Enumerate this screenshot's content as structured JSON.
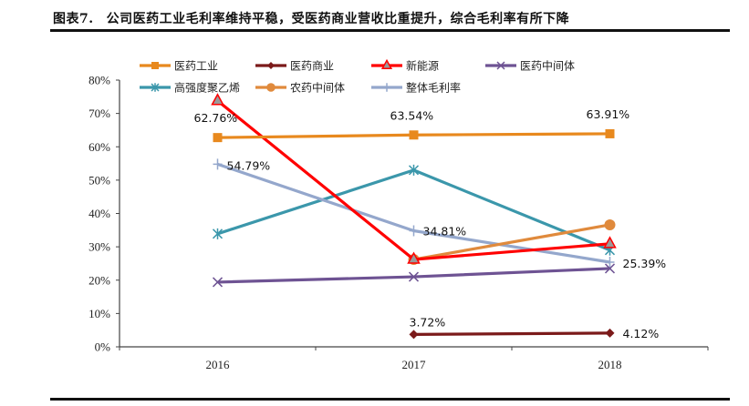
{
  "header": {
    "figure_number": "图表7.",
    "title": "公司医药工业毛利率维持平稳，受医药商业营收比重提升，综合毛利率有所下降"
  },
  "chart_data": {
    "type": "line",
    "title": "公司医药工业毛利率维持平稳，受医药商业营收比重提升，综合毛利率有所下降",
    "xlabel": "",
    "ylabel": "",
    "categories": [
      "2016",
      "2017",
      "2018"
    ],
    "ylim": [
      0,
      80
    ],
    "y_ticks": [
      "0%",
      "10%",
      "20%",
      "30%",
      "40%",
      "50%",
      "60%",
      "70%",
      "80%"
    ],
    "y_tick_values": [
      0,
      10,
      20,
      30,
      40,
      50,
      60,
      70,
      80
    ],
    "grid": false,
    "legend_position": "top",
    "series": [
      {
        "name": "医药工业",
        "color": "#E8891E",
        "marker": "square",
        "values": [
          62.76,
          63.54,
          63.91
        ],
        "labels": [
          "62.76%",
          "63.54%",
          "63.91%"
        ]
      },
      {
        "name": "医药商业",
        "color": "#7B1A1A",
        "marker": "diamond",
        "values": [
          null,
          3.72,
          4.12
        ],
        "labels": [
          null,
          "3.72%",
          "4.12%"
        ]
      },
      {
        "name": "新能源",
        "color": "#FF0000",
        "marker": "triangle",
        "values": [
          73.8,
          26.2,
          30.9
        ],
        "labels": [
          null,
          null,
          null
        ]
      },
      {
        "name": "医药中间体",
        "color": "#6E5393",
        "marker": "x",
        "values": [
          19.4,
          21.0,
          23.5
        ],
        "labels": [
          null,
          null,
          null
        ]
      },
      {
        "name": "高强度聚乙烯",
        "color": "#3B97AB",
        "marker": "star",
        "values": [
          33.9,
          53.0,
          29.0
        ],
        "labels": [
          null,
          null,
          null
        ]
      },
      {
        "name": "农药中间体",
        "color": "#E08A3C",
        "marker": "circle",
        "values": [
          null,
          26.2,
          36.6
        ],
        "labels": [
          null,
          null,
          null
        ]
      },
      {
        "name": "整体毛利率",
        "color": "#94A7CC",
        "marker": "plus",
        "values": [
          54.79,
          34.81,
          25.39
        ],
        "labels": [
          "54.79%",
          "34.81%",
          "25.39%"
        ]
      }
    ]
  }
}
